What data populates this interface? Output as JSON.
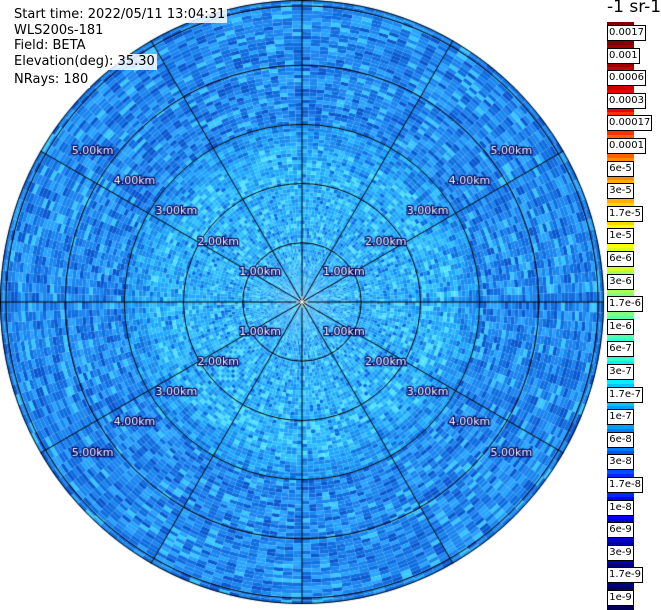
{
  "info": {
    "start_time": "Start time: 2022/05/11 13:04:31",
    "instrument": "WLS200s-181",
    "field": "Field: BETA",
    "elevation": "Elevation(deg): 35.30",
    "nrays": "NRays: 180"
  },
  "colorbar": {
    "units": "-1 sr-1",
    "labels": [
      "0.0017",
      "0.001",
      "0.0006",
      "0.0003",
      "0.00017",
      "0.0001",
      "6e-5",
      "3e-5",
      "1.7e-5",
      "1e-5",
      "6e-6",
      "3e-6",
      "1.7e-6",
      "1e-6",
      "6e-7",
      "3e-7",
      "1.7e-7",
      "1e-7",
      "6e-8",
      "3e-8",
      "1.7e-8",
      "1e-8",
      "6e-9",
      "3e-9",
      "1.7e-9",
      "1e-9"
    ],
    "colors": [
      "#800000",
      "#a00000",
      "#c80000",
      "#f00000",
      "#ff3000",
      "#ff6000",
      "#ff8c00",
      "#ffb000",
      "#ffd800",
      "#ffff00",
      "#d8ff20",
      "#a8ff58",
      "#80ff80",
      "#58ffa8",
      "#30ffd0",
      "#00f0ff",
      "#00c8ff",
      "#00a0ff",
      "#0078ff",
      "#0050ff",
      "#0028ff",
      "#0000ff",
      "#0000d0",
      "#0000a8",
      "#000080",
      "#000058"
    ]
  },
  "chart_data": {
    "type": "heatmap",
    "projection": "polar PPI",
    "title": "",
    "range_rings_km": [
      1,
      2,
      3,
      4,
      5
    ],
    "ring_labels": [
      "1.00km",
      "2.00km",
      "3.00km",
      "4.00km",
      "5.00km"
    ],
    "max_range_km": 5.1,
    "spoke_angles_deg": [
      0,
      30,
      60,
      90,
      120,
      150,
      180,
      210,
      240,
      270,
      300,
      330
    ],
    "nrays": 180,
    "field": "BETA",
    "value_range": [
      "1e-9",
      "0.0017"
    ],
    "dominant_values": {
      "near_range_0_to_3km": "3e-8 to 1e-7",
      "far_range_3_to_5km": "1e-8 to 6e-8"
    }
  }
}
